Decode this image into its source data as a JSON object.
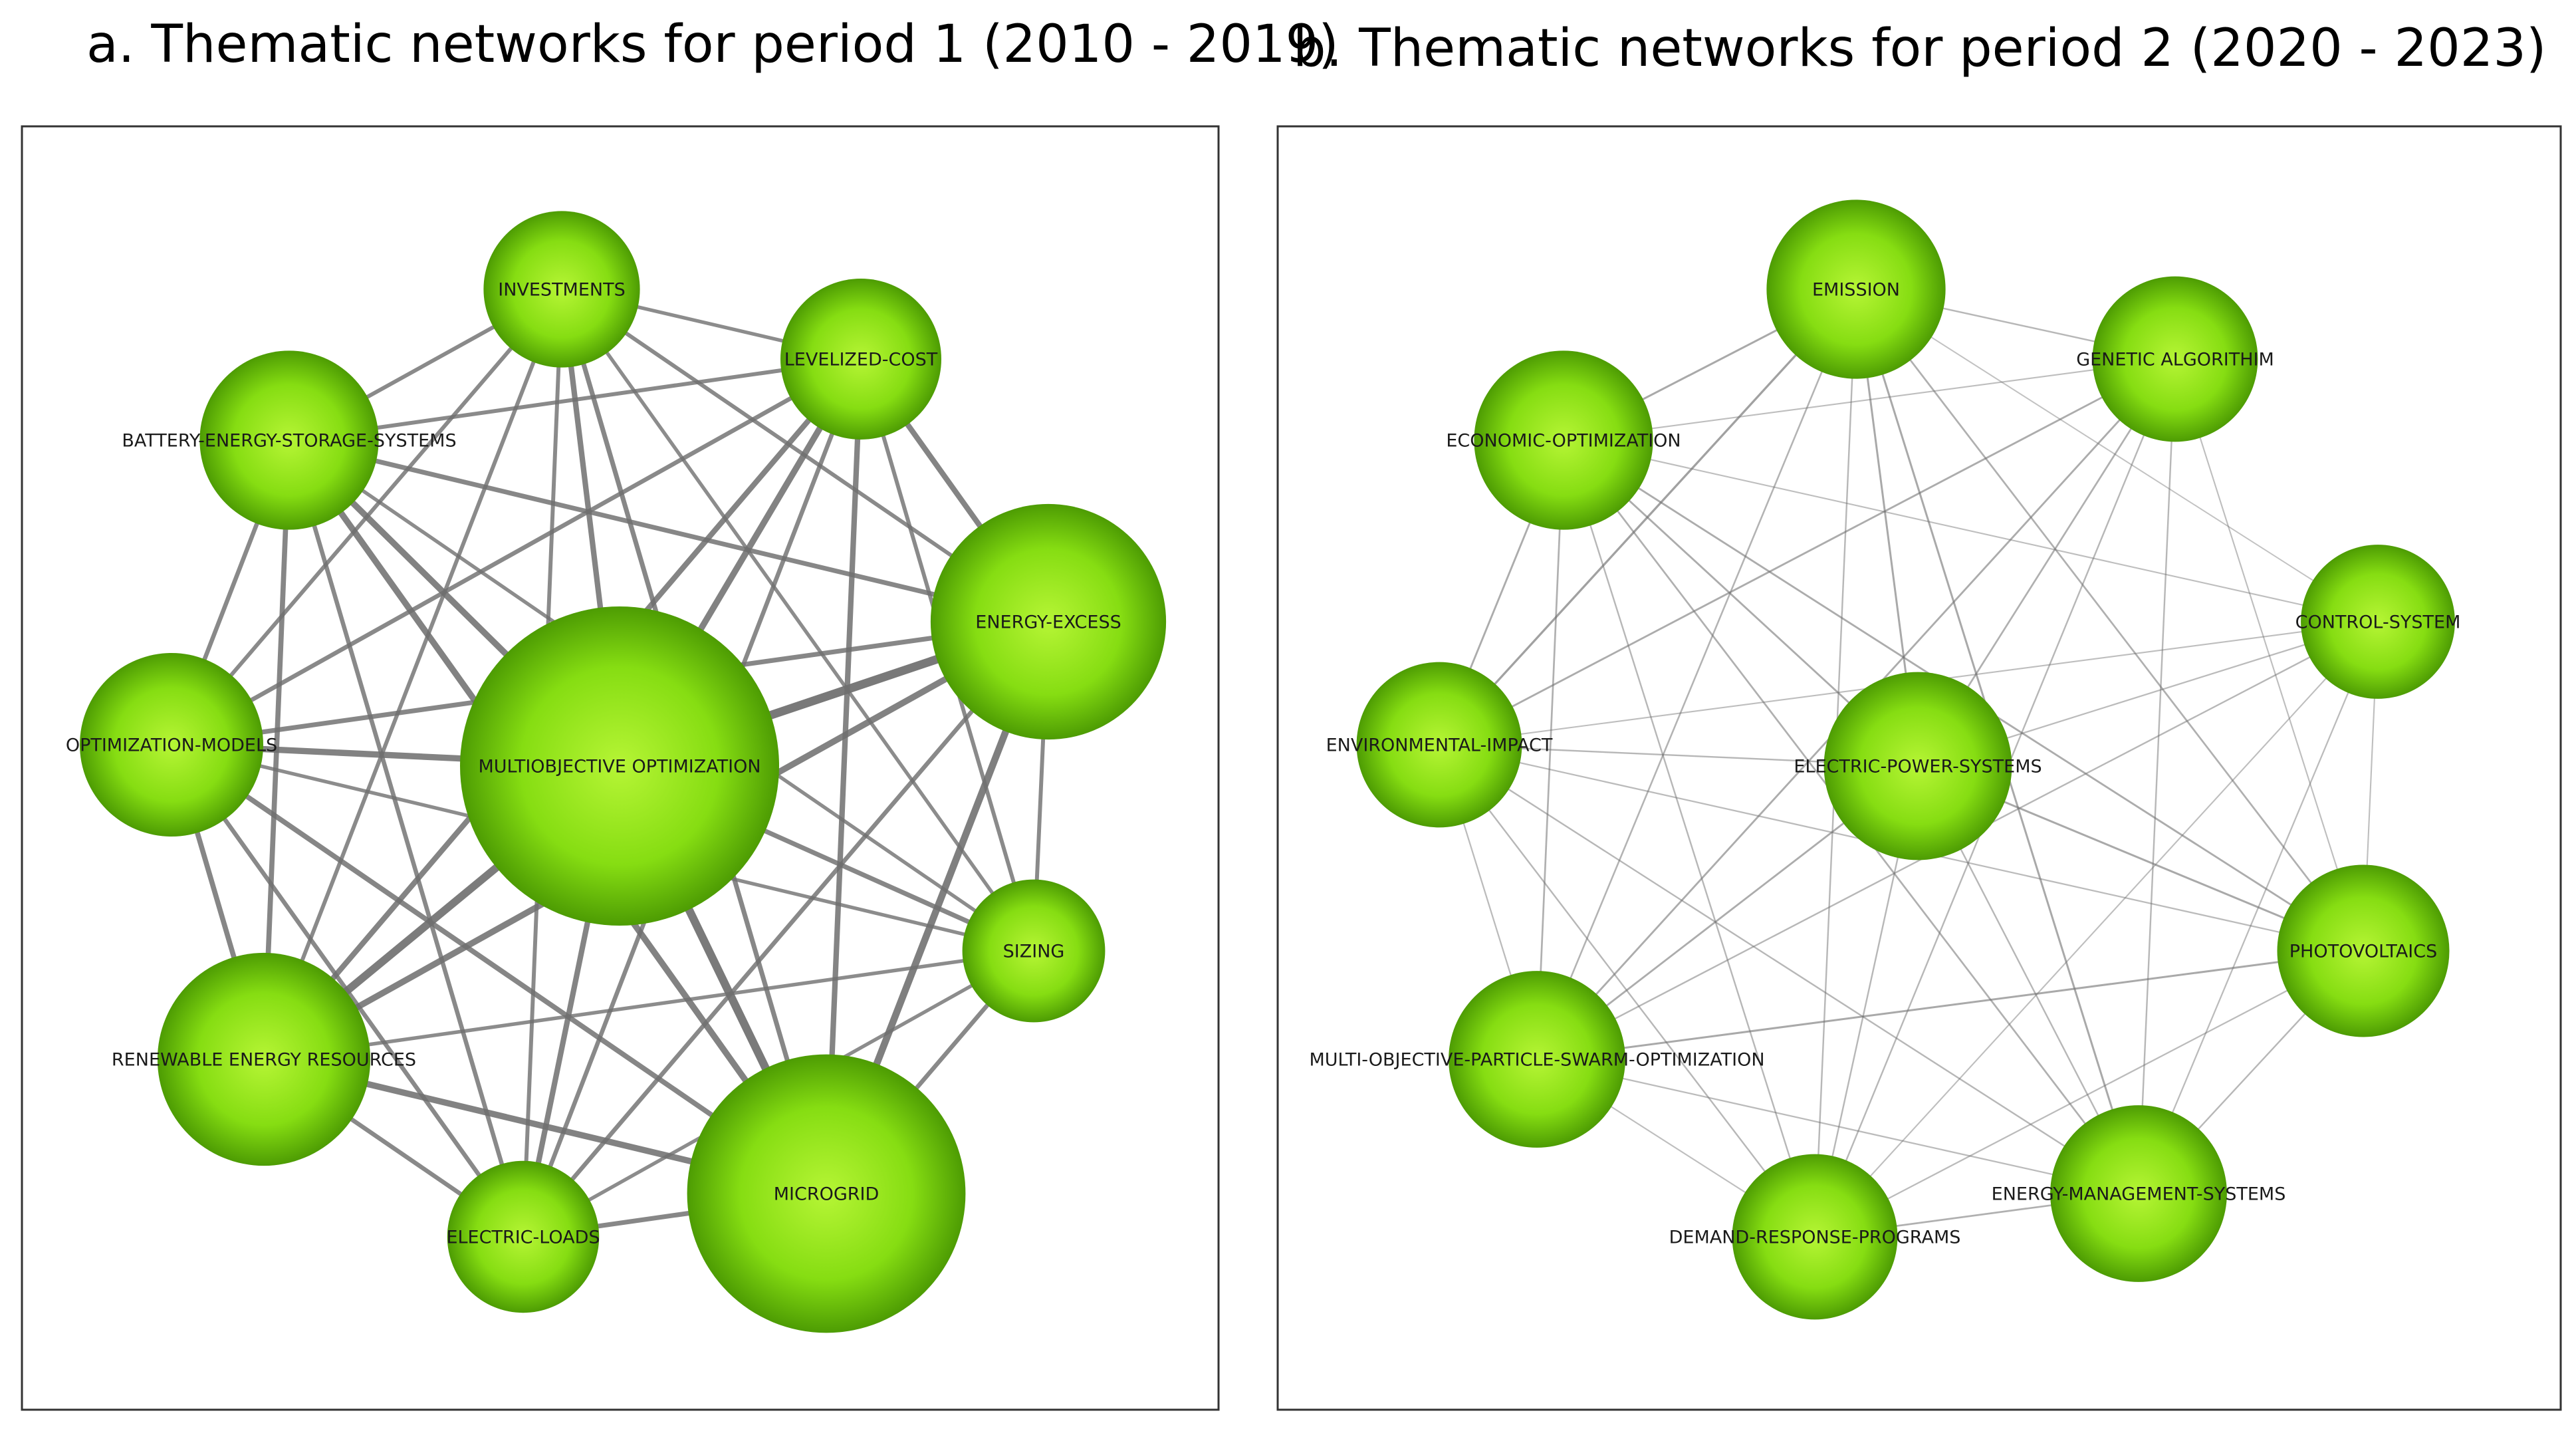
{
  "colors": {
    "node_light": "#b6f535",
    "node_mid": "#86dd12",
    "node_dark": "#4d9c03",
    "edge_strong": "#6f6f6f",
    "edge_weak": "#bdbdbd",
    "frame": "#333333"
  },
  "panels": [
    {
      "id": "a",
      "title": "a. Thematic networks for period 1 (2010 - 2019)",
      "nodes": [
        {
          "id": "investments",
          "label": "INVESTMENTS",
          "weight": 0.28
        },
        {
          "id": "levelized-cost",
          "label": "LEVELIZED-COST",
          "weight": 0.3
        },
        {
          "id": "battery-energy-storage-systems",
          "label": "BATTERY-ENERGY-STORAGE-SYSTEMS",
          "weight": 0.38
        },
        {
          "id": "energy-excess",
          "label": "ENERGY-EXCESS",
          "weight": 0.63
        },
        {
          "id": "optimization-models",
          "label": "OPTIMIZATION-MODELS",
          "weight": 0.4
        },
        {
          "id": "multiobjective-optimization",
          "label": "MULTIOBJECTIVE OPTIMIZATION",
          "weight": 1.0
        },
        {
          "id": "sizing",
          "label": "SIZING",
          "weight": 0.22
        },
        {
          "id": "renewable-energy-resources",
          "label": "RENEWABLE ENERGY RESOURCES",
          "weight": 0.53
        },
        {
          "id": "electric-loads",
          "label": "ELECTRIC-LOADS",
          "weight": 0.26
        },
        {
          "id": "microgrid",
          "label": "MICROGRID",
          "weight": 0.82
        }
      ],
      "edges": [
        {
          "source": "multiobjective-optimization",
          "target": "energy-excess",
          "weight": 0.9
        },
        {
          "source": "multiobjective-optimization",
          "target": "renewable-energy-resources",
          "weight": 0.8
        },
        {
          "source": "multiobjective-optimization",
          "target": "microgrid",
          "weight": 0.85
        },
        {
          "source": "multiobjective-optimization",
          "target": "battery-energy-storage-systems",
          "weight": 0.6
        },
        {
          "source": "multiobjective-optimization",
          "target": "optimization-models",
          "weight": 0.6
        },
        {
          "source": "multiobjective-optimization",
          "target": "investments",
          "weight": 0.5
        },
        {
          "source": "multiobjective-optimization",
          "target": "levelized-cost",
          "weight": 0.6
        },
        {
          "source": "multiobjective-optimization",
          "target": "sizing",
          "weight": 0.4
        },
        {
          "source": "multiobjective-optimization",
          "target": "electric-loads",
          "weight": 0.5
        },
        {
          "source": "energy-excess",
          "target": "microgrid",
          "weight": 0.7
        },
        {
          "source": "energy-excess",
          "target": "renewable-energy-resources",
          "weight": 0.6
        },
        {
          "source": "energy-excess",
          "target": "levelized-cost",
          "weight": 0.5
        },
        {
          "source": "energy-excess",
          "target": "battery-energy-storage-systems",
          "weight": 0.4
        },
        {
          "source": "energy-excess",
          "target": "optimization-models",
          "weight": 0.4
        },
        {
          "source": "energy-excess",
          "target": "sizing",
          "weight": 0.3
        },
        {
          "source": "energy-excess",
          "target": "electric-loads",
          "weight": 0.35
        },
        {
          "source": "energy-excess",
          "target": "investments",
          "weight": 0.3
        },
        {
          "source": "microgrid",
          "target": "renewable-energy-resources",
          "weight": 0.6
        },
        {
          "source": "microgrid",
          "target": "levelized-cost",
          "weight": 0.5
        },
        {
          "source": "microgrid",
          "target": "investments",
          "weight": 0.4
        },
        {
          "source": "microgrid",
          "target": "battery-energy-storage-systems",
          "weight": 0.6
        },
        {
          "source": "microgrid",
          "target": "optimization-models",
          "weight": 0.45
        },
        {
          "source": "microgrid",
          "target": "electric-loads",
          "weight": 0.4
        },
        {
          "source": "microgrid",
          "target": "sizing",
          "weight": 0.35
        },
        {
          "source": "renewable-energy-resources",
          "target": "battery-energy-storage-systems",
          "weight": 0.45
        },
        {
          "source": "renewable-energy-resources",
          "target": "optimization-models",
          "weight": 0.45
        },
        {
          "source": "renewable-energy-resources",
          "target": "levelized-cost",
          "weight": 0.5
        },
        {
          "source": "renewable-energy-resources",
          "target": "investments",
          "weight": 0.3
        },
        {
          "source": "renewable-energy-resources",
          "target": "electric-loads",
          "weight": 0.35
        },
        {
          "source": "renewable-energy-resources",
          "target": "sizing",
          "weight": 0.25
        },
        {
          "source": "battery-energy-storage-systems",
          "target": "investments",
          "weight": 0.3
        },
        {
          "source": "battery-energy-storage-systems",
          "target": "levelized-cost",
          "weight": 0.3
        },
        {
          "source": "battery-energy-storage-systems",
          "target": "optimization-models",
          "weight": 0.35
        },
        {
          "source": "battery-energy-storage-systems",
          "target": "electric-loads",
          "weight": 0.35
        },
        {
          "source": "battery-energy-storage-systems",
          "target": "sizing",
          "weight": 0.25
        },
        {
          "source": "optimization-models",
          "target": "investments",
          "weight": 0.3
        },
        {
          "source": "optimization-models",
          "target": "levelized-cost",
          "weight": 0.35
        },
        {
          "source": "optimization-models",
          "target": "electric-loads",
          "weight": 0.35
        },
        {
          "source": "optimization-models",
          "target": "sizing",
          "weight": 0.25
        },
        {
          "source": "investments",
          "target": "levelized-cost",
          "weight": 0.25
        },
        {
          "source": "investments",
          "target": "electric-loads",
          "weight": 0.3
        },
        {
          "source": "investments",
          "target": "sizing",
          "weight": 0.25
        },
        {
          "source": "levelized-cost",
          "target": "electric-loads",
          "weight": 0.35
        },
        {
          "source": "levelized-cost",
          "target": "sizing",
          "weight": 0.3
        },
        {
          "source": "electric-loads",
          "target": "sizing",
          "weight": 0.25
        }
      ]
    },
    {
      "id": "b",
      "title": "b. Thematic networks for period 2 (2020 - 2023)",
      "nodes": [
        {
          "id": "emission",
          "label": "EMISSION",
          "weight": 0.38
        },
        {
          "id": "genetic-algorithim",
          "label": "GENETIC ALGORITHIM",
          "weight": 0.32
        },
        {
          "id": "economic-optimization",
          "label": "ECONOMIC-OPTIMIZATION",
          "weight": 0.38
        },
        {
          "id": "control-system",
          "label": "CONTROL-SYSTEM",
          "weight": 0.27
        },
        {
          "id": "environmental-impact",
          "label": "ENVIRONMENTAL-IMPACT",
          "weight": 0.32
        },
        {
          "id": "electric-power-systems",
          "label": "ELECTRIC-POWER-SYSTEMS",
          "weight": 0.42
        },
        {
          "id": "photovoltaics",
          "label": "PHOTOVOLTAICS",
          "weight": 0.35
        },
        {
          "id": "multi-objective-particle-swarm-optimization",
          "label": "MULTI-OBJECTIVE-PARTICLE-SWARM-OPTIMIZATION",
          "weight": 0.37
        },
        {
          "id": "energy-management-systems",
          "label": "ENERGY-MANAGEMENT-SYSTEMS",
          "weight": 0.37
        },
        {
          "id": "demand-response-programs",
          "label": "DEMAND-RESPONSE-PROGRAMS",
          "weight": 0.32
        }
      ],
      "edges": [
        {
          "source": "emission",
          "target": "environmental-impact",
          "weight": 0.6
        },
        {
          "source": "emission",
          "target": "economic-optimization",
          "weight": 0.5
        },
        {
          "source": "emission",
          "target": "electric-power-systems",
          "weight": 0.5
        },
        {
          "source": "emission",
          "target": "energy-management-systems",
          "weight": 0.5
        },
        {
          "source": "emission",
          "target": "photovoltaics",
          "weight": 0.4
        },
        {
          "source": "emission",
          "target": "multi-objective-particle-swarm-optimization",
          "weight": 0.35
        },
        {
          "source": "emission",
          "target": "demand-response-programs",
          "weight": 0.3
        },
        {
          "source": "emission",
          "target": "genetic-algorithim",
          "weight": 0.3
        },
        {
          "source": "emission",
          "target": "control-system",
          "weight": 0.15
        },
        {
          "source": "genetic-algorithim",
          "target": "electric-power-systems",
          "weight": 0.4
        },
        {
          "source": "genetic-algorithim",
          "target": "environmental-impact",
          "weight": 0.45
        },
        {
          "source": "genetic-algorithim",
          "target": "multi-objective-particle-swarm-optimization",
          "weight": 0.45
        },
        {
          "source": "genetic-algorithim",
          "target": "demand-response-programs",
          "weight": 0.3
        },
        {
          "source": "genetic-algorithim",
          "target": "energy-management-systems",
          "weight": 0.3
        },
        {
          "source": "genetic-algorithim",
          "target": "photovoltaics",
          "weight": 0.2
        },
        {
          "source": "genetic-algorithim",
          "target": "economic-optimization",
          "weight": 0.2
        },
        {
          "source": "economic-optimization",
          "target": "electric-power-systems",
          "weight": 0.45
        },
        {
          "source": "economic-optimization",
          "target": "photovoltaics",
          "weight": 0.45
        },
        {
          "source": "economic-optimization",
          "target": "energy-management-systems",
          "weight": 0.4
        },
        {
          "source": "economic-optimization",
          "target": "environmental-impact",
          "weight": 0.45
        },
        {
          "source": "economic-optimization",
          "target": "multi-objective-particle-swarm-optimization",
          "weight": 0.4
        },
        {
          "source": "economic-optimization",
          "target": "demand-response-programs",
          "weight": 0.3
        },
        {
          "source": "economic-optimization",
          "target": "control-system",
          "weight": 0.2
        },
        {
          "source": "electric-power-systems",
          "target": "photovoltaics",
          "weight": 0.5
        },
        {
          "source": "electric-power-systems",
          "target": "multi-objective-particle-swarm-optimization",
          "weight": 0.45
        },
        {
          "source": "electric-power-systems",
          "target": "environmental-impact",
          "weight": 0.3
        },
        {
          "source": "electric-power-systems",
          "target": "demand-response-programs",
          "weight": 0.3
        },
        {
          "source": "electric-power-systems",
          "target": "energy-management-systems",
          "weight": 0.3
        },
        {
          "source": "electric-power-systems",
          "target": "control-system",
          "weight": 0.25
        },
        {
          "source": "multi-objective-particle-swarm-optimization",
          "target": "photovoltaics",
          "weight": 0.5
        },
        {
          "source": "multi-objective-particle-swarm-optimization",
          "target": "control-system",
          "weight": 0.3
        },
        {
          "source": "multi-objective-particle-swarm-optimization",
          "target": "energy-management-systems",
          "weight": 0.25
        },
        {
          "source": "multi-objective-particle-swarm-optimization",
          "target": "demand-response-programs",
          "weight": 0.2
        },
        {
          "source": "environmental-impact",
          "target": "photovoltaics",
          "weight": 0.25
        },
        {
          "source": "environmental-impact",
          "target": "energy-management-systems",
          "weight": 0.3
        },
        {
          "source": "environmental-impact",
          "target": "demand-response-programs",
          "weight": 0.3
        },
        {
          "source": "environmental-impact",
          "target": "control-system",
          "weight": 0.2
        },
        {
          "source": "environmental-impact",
          "target": "multi-objective-particle-swarm-optimization",
          "weight": 0.25
        },
        {
          "source": "energy-management-systems",
          "target": "demand-response-programs",
          "weight": 0.4
        },
        {
          "source": "energy-management-systems",
          "target": "photovoltaics",
          "weight": 0.3
        },
        {
          "source": "energy-management-systems",
          "target": "control-system",
          "weight": 0.25
        },
        {
          "source": "demand-response-programs",
          "target": "photovoltaics",
          "weight": 0.25
        },
        {
          "source": "demand-response-programs",
          "target": "control-system",
          "weight": 0.2
        },
        {
          "source": "photovoltaics",
          "target": "control-system",
          "weight": 0.2
        }
      ]
    }
  ]
}
